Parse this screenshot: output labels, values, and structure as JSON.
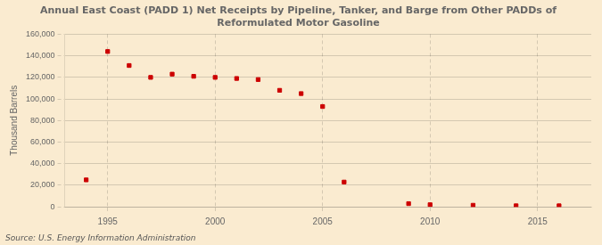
{
  "chart_data": {
    "type": "scatter",
    "title": "Annual East Coast (PADD 1) Net Receipts by Pipeline, Tanker, and Barge from Other PADDs of\nReformulated Motor Gasoline",
    "ylabel": "Thousand Barrels",
    "annotations": [
      "Source: U.S. Energy Information Administration"
    ],
    "x": [
      1994,
      1995,
      1996,
      1997,
      1998,
      1999,
      2000,
      2001,
      2002,
      2003,
      2004,
      2005,
      2006,
      2009,
      2010,
      2012,
      2014,
      2016
    ],
    "values": [
      25000,
      144000,
      131000,
      120000,
      123000,
      121000,
      120000,
      119000,
      118000,
      108000,
      105000,
      93000,
      23000,
      3000,
      2000,
      1500,
      1000,
      1000
    ],
    "color": "#cc0000",
    "marker": "square",
    "xlim": [
      1993.0,
      2017.5
    ],
    "xticks": [
      1995,
      2000,
      2005,
      2010,
      2015
    ],
    "ylim": [
      0,
      160000
    ],
    "yticks": [
      0,
      {
        "value": 20000,
        "label": "20,000"
      },
      {
        "value": 40000,
        "label": "40,000"
      },
      {
        "value": 60000,
        "label": "60,000"
      },
      {
        "value": 80000,
        "label": "80,000"
      },
      {
        "value": 100000,
        "label": "100,000"
      },
      {
        "value": 120000,
        "label": "120,000"
      },
      {
        "value": 140000,
        "label": "140,000"
      },
      {
        "value": 160000,
        "label": "160,000"
      }
    ],
    "grid": true
  }
}
